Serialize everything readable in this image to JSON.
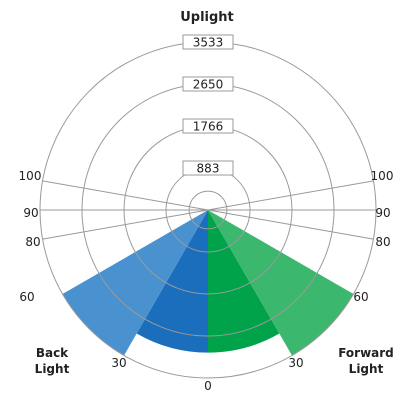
{
  "chart_data": {
    "type": "polar-area",
    "title": "Uplight",
    "zone_labels": {
      "back": [
        "Back",
        "Light"
      ],
      "forward": [
        "Forward",
        "Light"
      ]
    },
    "ring_values": [
      883,
      1766,
      2650,
      3533
    ],
    "angle_labels": [
      "0",
      "30",
      "60",
      "80",
      "90",
      "100"
    ],
    "series": [
      {
        "name": "",
        "side": "back",
        "angle_from": 0,
        "angle_to": 30,
        "value": 3000,
        "color": "#1a6ebc"
      },
      {
        "name": "",
        "side": "back",
        "angle_from": 30,
        "angle_to": 60,
        "value": 3533,
        "color": "#4a91cf"
      },
      {
        "name": "",
        "side": "forward",
        "angle_from": 0,
        "angle_to": 30,
        "value": 3000,
        "color": "#00a34a"
      },
      {
        "name": "",
        "side": "forward",
        "angle_from": 30,
        "angle_to": 60,
        "value": 3533,
        "color": "#3cb76e"
      }
    ],
    "max_value": 3533
  },
  "colors": {
    "grid": "#9a9a9a",
    "label_box_border": "#9a9a9a"
  }
}
